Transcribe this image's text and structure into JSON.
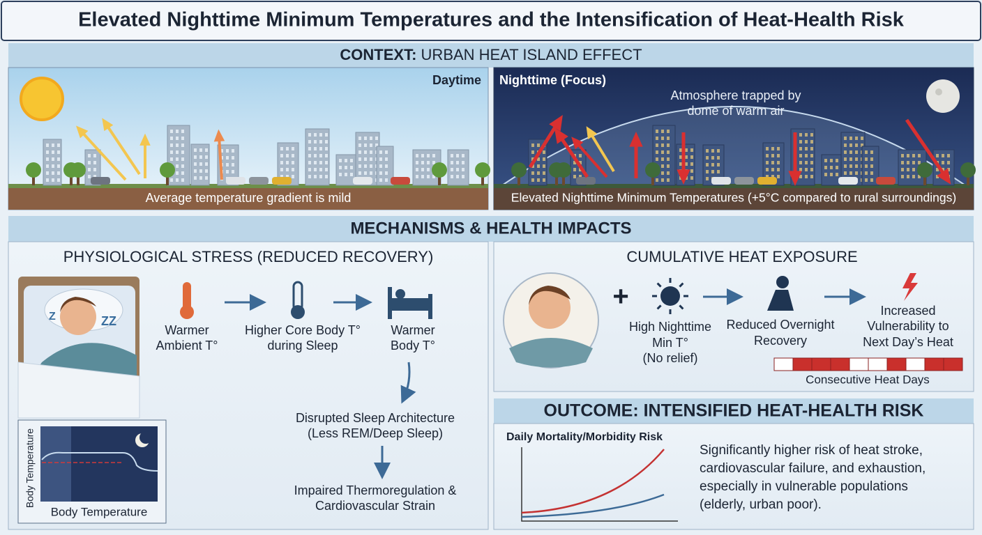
{
  "title": "Elevated Nighttime Minimum Temperatures and the Intensification of Heat-Health Risk",
  "context": {
    "heading_bold": "CONTEXT:",
    "heading_rest": "URBAN HEAT ISLAND EFFECT",
    "day": {
      "label": "Daytime",
      "caption": "Average temperature gradient is mild"
    },
    "night": {
      "label": "Nighttime (Focus)",
      "note": [
        "Atmosphere trapped by",
        "dome of warm air"
      ],
      "caption": "Elevated Nighttime Minimum Temperatures (+5°C compared to rural surroundings)"
    }
  },
  "mechanisms": {
    "heading": "MECHANISMS & HEALTH IMPACTS",
    "physiological": {
      "title": "PHYSIOLOGICAL STRESS (REDUCED RECOVERY)",
      "steps": [
        [
          "Warmer",
          "Ambient T°"
        ],
        [
          "Higher Core Body T°",
          "during Sleep"
        ],
        [
          "Warmer",
          "Body T°"
        ],
        [
          "Disrupted Sleep Architecture",
          "(Less REM/Deep Sleep)"
        ],
        [
          "Impaired Thermoregulation &",
          "Cardiovascular Strain"
        ]
      ],
      "chart_axis_label": "Body Temperature",
      "chart_caption": "Body Temperature"
    },
    "cumulative": {
      "title": "CUMULATIVE HEAT EXPOSURE",
      "steps": [
        [
          "High Nighttime",
          "Min T°",
          "(No relief)"
        ],
        [
          "Reduced Overnight",
          "Recovery"
        ],
        [
          "Increased",
          "Vulnerability to",
          "Next Day’s Heat"
        ]
      ],
      "bar_label": "Consecutive Heat Days"
    }
  },
  "outcome": {
    "heading": "OUTCOME: INTENSIFIED HEAT-HEALTH RISK",
    "chart_label": "Daily Mortality/Morbidity Risk",
    "text": [
      "Significantly higher risk of heat stroke,",
      "cardiovascular failure, and exhaustion,",
      "especially in vulnerable populations",
      "(elderly, urban poor)."
    ]
  }
}
